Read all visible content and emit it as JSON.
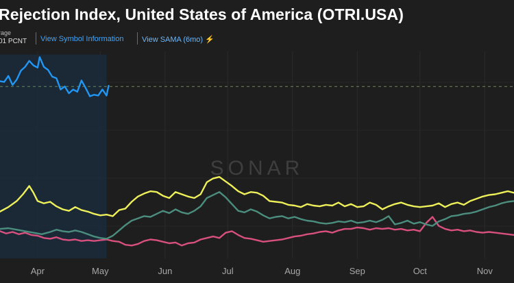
{
  "header": {
    "title": "Rejection Index, United States of America (OTRI.USA)",
    "stat_label": "rage",
    "stat_value": "01 PCNT",
    "links": {
      "symbol_info": "View Symbol Information",
      "sama": "View SAMA (6mo)"
    },
    "sama_icon": "sama-chart-icon"
  },
  "watermark": "SONAR",
  "colors": {
    "background": "#1e1e1e",
    "current_series": "#2196f3",
    "yellow_series": "#eef05a",
    "green_series": "#4b8e7e",
    "pink_series": "#d9507e",
    "highlight_band": "#1b2c3c",
    "reference_line": "#6b8a5e"
  },
  "chart_data": {
    "type": "line",
    "x_tick_labels": [
      "Apr",
      "May",
      "Jun",
      "Jul",
      "Aug",
      "Sep",
      "Oct",
      "Nov"
    ],
    "x_label_days": [
      0,
      30,
      61,
      91,
      122,
      153,
      183,
      214
    ],
    "x_domain_days": [
      -18,
      228
    ],
    "ylim": [
      0,
      27
    ],
    "reference_level": 22.8,
    "highlight_until_day": 33,
    "grid": true,
    "series": [
      {
        "color": "#2196f3",
        "points": [
          [
            -18,
            23.5
          ],
          [
            -16,
            23.4
          ],
          [
            -14,
            24.2
          ],
          [
            -12,
            23.0
          ],
          [
            -10,
            23.7
          ],
          [
            -8,
            24.9
          ],
          [
            -6,
            25.4
          ],
          [
            -4,
            26.2
          ],
          [
            -2,
            25.6
          ],
          [
            0,
            25.3
          ],
          [
            1,
            26.7
          ],
          [
            3,
            25.4
          ],
          [
            5,
            25.0
          ],
          [
            7,
            24.1
          ],
          [
            9,
            23.9
          ],
          [
            11,
            22.4
          ],
          [
            13,
            22.8
          ],
          [
            15,
            21.9
          ],
          [
            17,
            22.4
          ],
          [
            19,
            22.1
          ],
          [
            21,
            23.6
          ],
          [
            23,
            22.6
          ],
          [
            25,
            21.5
          ],
          [
            27,
            21.7
          ],
          [
            29,
            21.6
          ],
          [
            31,
            22.4
          ],
          [
            33,
            21.6
          ],
          [
            34,
            22.9
          ]
        ]
      },
      {
        "color": "#eef05a",
        "points": [
          [
            -18,
            6.2
          ],
          [
            -14,
            6.8
          ],
          [
            -10,
            7.6
          ],
          [
            -7,
            8.5
          ],
          [
            -4,
            9.6
          ],
          [
            -2,
            8.7
          ],
          [
            0,
            7.6
          ],
          [
            3,
            7.3
          ],
          [
            6,
            7.5
          ],
          [
            9,
            6.9
          ],
          [
            12,
            6.5
          ],
          [
            15,
            6.3
          ],
          [
            18,
            6.8
          ],
          [
            21,
            6.4
          ],
          [
            24,
            6.2
          ],
          [
            27,
            5.9
          ],
          [
            30,
            5.7
          ],
          [
            33,
            5.8
          ],
          [
            36,
            5.6
          ],
          [
            39,
            6.4
          ],
          [
            42,
            6.6
          ],
          [
            45,
            7.5
          ],
          [
            48,
            8.2
          ],
          [
            51,
            8.6
          ],
          [
            54,
            8.9
          ],
          [
            57,
            8.8
          ],
          [
            60,
            8.3
          ],
          [
            63,
            8.0
          ],
          [
            66,
            8.8
          ],
          [
            69,
            8.5
          ],
          [
            72,
            8.2
          ],
          [
            75,
            8.0
          ],
          [
            78,
            8.5
          ],
          [
            81,
            10.1
          ],
          [
            84,
            10.6
          ],
          [
            87,
            10.8
          ],
          [
            90,
            10.2
          ],
          [
            93,
            9.6
          ],
          [
            96,
            8.9
          ],
          [
            99,
            8.5
          ],
          [
            102,
            8.8
          ],
          [
            105,
            8.7
          ],
          [
            108,
            8.3
          ],
          [
            111,
            7.6
          ],
          [
            114,
            7.5
          ],
          [
            117,
            7.4
          ],
          [
            120,
            7.1
          ],
          [
            123,
            7.0
          ],
          [
            126,
            6.8
          ],
          [
            129,
            7.2
          ],
          [
            132,
            7.0
          ],
          [
            135,
            6.9
          ],
          [
            138,
            7.1
          ],
          [
            141,
            7.0
          ],
          [
            144,
            7.4
          ],
          [
            147,
            6.9
          ],
          [
            150,
            7.2
          ],
          [
            153,
            6.8
          ],
          [
            156,
            6.9
          ],
          [
            159,
            7.4
          ],
          [
            162,
            7.1
          ],
          [
            165,
            6.5
          ],
          [
            168,
            6.9
          ],
          [
            171,
            7.2
          ],
          [
            174,
            7.4
          ],
          [
            177,
            7.1
          ],
          [
            180,
            6.9
          ],
          [
            183,
            6.8
          ],
          [
            186,
            6.9
          ],
          [
            189,
            7.0
          ],
          [
            192,
            7.3
          ],
          [
            195,
            6.8
          ],
          [
            198,
            7.2
          ],
          [
            201,
            7.4
          ],
          [
            204,
            7.1
          ],
          [
            207,
            7.6
          ],
          [
            210,
            7.9
          ],
          [
            213,
            8.2
          ],
          [
            216,
            8.4
          ],
          [
            219,
            8.5
          ],
          [
            222,
            8.7
          ],
          [
            225,
            8.9
          ],
          [
            228,
            8.7
          ]
        ]
      },
      {
        "color": "#4b8e7e",
        "points": [
          [
            -18,
            3.9
          ],
          [
            -14,
            4.0
          ],
          [
            -10,
            3.8
          ],
          [
            -6,
            3.6
          ],
          [
            -2,
            3.4
          ],
          [
            2,
            3.2
          ],
          [
            6,
            3.5
          ],
          [
            9,
            3.8
          ],
          [
            12,
            3.6
          ],
          [
            15,
            3.5
          ],
          [
            18,
            3.7
          ],
          [
            21,
            3.5
          ],
          [
            24,
            3.2
          ],
          [
            27,
            2.9
          ],
          [
            30,
            2.7
          ],
          [
            33,
            2.6
          ],
          [
            36,
            3.0
          ],
          [
            39,
            3.7
          ],
          [
            42,
            4.4
          ],
          [
            45,
            5.0
          ],
          [
            48,
            5.3
          ],
          [
            51,
            5.6
          ],
          [
            54,
            5.5
          ],
          [
            57,
            5.9
          ],
          [
            60,
            6.3
          ],
          [
            63,
            6.0
          ],
          [
            66,
            6.5
          ],
          [
            69,
            6.1
          ],
          [
            72,
            5.9
          ],
          [
            75,
            6.3
          ],
          [
            78,
            6.9
          ],
          [
            81,
            8.0
          ],
          [
            84,
            8.4
          ],
          [
            87,
            8.8
          ],
          [
            90,
            8.1
          ],
          [
            93,
            7.2
          ],
          [
            96,
            6.3
          ],
          [
            99,
            6.1
          ],
          [
            102,
            6.5
          ],
          [
            105,
            6.2
          ],
          [
            108,
            5.7
          ],
          [
            111,
            5.3
          ],
          [
            114,
            5.5
          ],
          [
            117,
            5.6
          ],
          [
            120,
            5.3
          ],
          [
            123,
            5.5
          ],
          [
            126,
            5.2
          ],
          [
            129,
            5.0
          ],
          [
            132,
            4.9
          ],
          [
            135,
            4.7
          ],
          [
            138,
            4.6
          ],
          [
            141,
            4.7
          ],
          [
            144,
            4.9
          ],
          [
            147,
            4.8
          ],
          [
            150,
            5.0
          ],
          [
            153,
            4.7
          ],
          [
            156,
            4.8
          ],
          [
            159,
            5.0
          ],
          [
            162,
            4.8
          ],
          [
            165,
            5.1
          ],
          [
            168,
            5.6
          ],
          [
            171,
            4.5
          ],
          [
            174,
            4.7
          ],
          [
            177,
            5.0
          ],
          [
            180,
            4.6
          ],
          [
            183,
            4.8
          ],
          [
            186,
            4.5
          ],
          [
            189,
            4.3
          ],
          [
            192,
            4.9
          ],
          [
            195,
            5.2
          ],
          [
            198,
            5.6
          ],
          [
            201,
            5.7
          ],
          [
            204,
            5.9
          ],
          [
            207,
            6.0
          ],
          [
            210,
            6.2
          ],
          [
            213,
            6.5
          ],
          [
            216,
            6.8
          ],
          [
            219,
            7.0
          ],
          [
            222,
            7.3
          ],
          [
            225,
            7.5
          ],
          [
            228,
            7.6
          ]
        ]
      },
      {
        "color": "#d9507e",
        "points": [
          [
            -18,
            3.6
          ],
          [
            -15,
            3.3
          ],
          [
            -12,
            3.5
          ],
          [
            -9,
            3.2
          ],
          [
            -6,
            3.4
          ],
          [
            -3,
            3.1
          ],
          [
            0,
            3.0
          ],
          [
            3,
            2.7
          ],
          [
            6,
            2.6
          ],
          [
            9,
            2.8
          ],
          [
            12,
            2.5
          ],
          [
            15,
            2.4
          ],
          [
            18,
            2.5
          ],
          [
            21,
            2.3
          ],
          [
            24,
            2.4
          ],
          [
            27,
            2.3
          ],
          [
            30,
            2.4
          ],
          [
            33,
            2.5
          ],
          [
            36,
            2.3
          ],
          [
            39,
            2.2
          ],
          [
            42,
            1.8
          ],
          [
            45,
            1.7
          ],
          [
            48,
            1.9
          ],
          [
            51,
            2.3
          ],
          [
            54,
            2.5
          ],
          [
            57,
            2.4
          ],
          [
            60,
            2.2
          ],
          [
            63,
            2.0
          ],
          [
            66,
            2.1
          ],
          [
            69,
            1.7
          ],
          [
            72,
            2.0
          ],
          [
            75,
            2.1
          ],
          [
            78,
            2.5
          ],
          [
            81,
            2.7
          ],
          [
            84,
            2.9
          ],
          [
            87,
            2.7
          ],
          [
            90,
            3.4
          ],
          [
            93,
            3.6
          ],
          [
            96,
            3.1
          ],
          [
            99,
            2.7
          ],
          [
            102,
            2.6
          ],
          [
            105,
            2.4
          ],
          [
            108,
            2.2
          ],
          [
            111,
            2.3
          ],
          [
            114,
            2.4
          ],
          [
            117,
            2.5
          ],
          [
            120,
            2.7
          ],
          [
            123,
            2.9
          ],
          [
            126,
            3.0
          ],
          [
            129,
            3.2
          ],
          [
            132,
            3.3
          ],
          [
            135,
            3.5
          ],
          [
            138,
            3.6
          ],
          [
            141,
            3.4
          ],
          [
            144,
            3.7
          ],
          [
            147,
            3.9
          ],
          [
            150,
            3.9
          ],
          [
            153,
            4.1
          ],
          [
            156,
            4.0
          ],
          [
            159,
            3.8
          ],
          [
            162,
            4.0
          ],
          [
            165,
            3.9
          ],
          [
            168,
            4.0
          ],
          [
            171,
            3.8
          ],
          [
            174,
            3.9
          ],
          [
            177,
            3.7
          ],
          [
            180,
            3.8
          ],
          [
            183,
            3.6
          ],
          [
            186,
            4.7
          ],
          [
            189,
            5.5
          ],
          [
            192,
            4.3
          ],
          [
            195,
            3.9
          ],
          [
            198,
            3.7
          ],
          [
            201,
            3.8
          ],
          [
            204,
            3.6
          ],
          [
            207,
            3.7
          ],
          [
            210,
            3.5
          ],
          [
            213,
            3.4
          ],
          [
            216,
            3.5
          ],
          [
            219,
            3.4
          ],
          [
            222,
            3.3
          ],
          [
            225,
            3.2
          ],
          [
            228,
            3.1
          ]
        ]
      }
    ]
  }
}
